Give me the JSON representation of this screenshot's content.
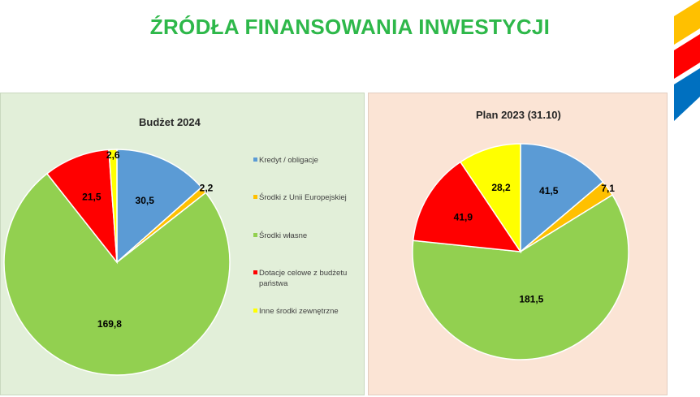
{
  "page": {
    "title": "ŹRÓDŁA FINANSOWANIA INWESTYCJI"
  },
  "legend": [
    {
      "label": "Kredyt / obligacje",
      "color": "#5b9bd5"
    },
    {
      "label": "Środki z Unii Europejskiej",
      "color": "#ffc000"
    },
    {
      "label": "Środki własne",
      "color": "#92d050"
    },
    {
      "label": "Dotacje celowe z budżetu państwa",
      "color": "#ff0000"
    },
    {
      "label": "Inne środki zewnętrzne",
      "color": "#ffff00"
    }
  ],
  "chart_data": [
    {
      "type": "pie",
      "title": "Budżet  2024",
      "categories": [
        "Kredyt / obligacje",
        "Środki z Unii Europejskiej",
        "Środki własne",
        "Dotacje celowe z budżetu państwa",
        "Inne środki zewnętrzne"
      ],
      "values": [
        30.5,
        2.2,
        169.8,
        21.5,
        2.6
      ],
      "value_labels": [
        "30,5",
        "2,2",
        "169,8",
        "21,5",
        "2,6"
      ],
      "colors": [
        "#5b9bd5",
        "#ffc000",
        "#92d050",
        "#ff0000",
        "#ffff00"
      ],
      "start_angle_deg": 0,
      "direction": "clockwise",
      "legend_position": "right"
    },
    {
      "type": "pie",
      "title": "Plan 2023 (31.10)",
      "categories": [
        "Kredyt / obligacje",
        "Środki z Unii Europejskiej",
        "Środki własne",
        "Dotacje celowe z budżetu państwa",
        "Inne środki zewnętrzne"
      ],
      "values": [
        41.5,
        7.1,
        181.5,
        41.9,
        28.2
      ],
      "value_labels": [
        "41,5",
        "7,1",
        "181,5",
        "41,9",
        "28,2"
      ],
      "colors": [
        "#5b9bd5",
        "#ffc000",
        "#92d050",
        "#ff0000",
        "#ffff00"
      ],
      "start_angle_deg": 0,
      "direction": "clockwise"
    }
  ]
}
